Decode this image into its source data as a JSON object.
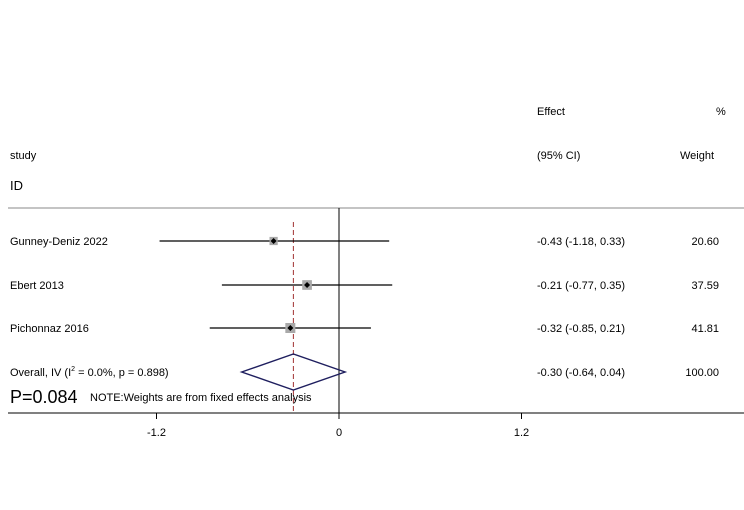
{
  "chart_data": {
    "type": "forest",
    "headers": {
      "study": "study",
      "id": "ID",
      "effect_line1": "Effect",
      "effect_line2": "(95% CI)",
      "weight_line1": "%",
      "weight_line2": "Weight"
    },
    "studies": [
      {
        "label": "Gunney-Deniz 2022",
        "effect": -0.43,
        "lower": -1.18,
        "upper": 0.33,
        "ci_text": "-0.43 (-1.18, 0.33)",
        "weight": 20.6,
        "weight_text": "20.60"
      },
      {
        "label": "Ebert 2013",
        "effect": -0.21,
        "lower": -0.77,
        "upper": 0.35,
        "ci_text": "-0.21 (-0.77, 0.35)",
        "weight": 37.59,
        "weight_text": "37.59"
      },
      {
        "label": "Pichonnaz 2016",
        "effect": -0.32,
        "lower": -0.85,
        "upper": 0.21,
        "ci_text": "-0.32 (-0.85, 0.21)",
        "weight": 41.81,
        "weight_text": "41.81"
      }
    ],
    "overall": {
      "label_prefix": "Overall, IV (I",
      "label_sup": "2",
      "label_suffix": " = 0.0%, p = 0.898)",
      "effect": -0.3,
      "lower": -0.64,
      "upper": 0.04,
      "ci_text": "-0.30 (-0.64, 0.04)",
      "weight_text": "100.00"
    },
    "p_value_text": "P=0.084",
    "note": "NOTE:Weights are from fixed effects analysis",
    "xticks": [
      -1.2,
      0,
      1.2
    ],
    "xtick_labels": [
      "-1.2",
      "0",
      "1.2"
    ],
    "xlim": [
      -1.2,
      1.2
    ],
    "colors": {
      "ci_line": "#000000",
      "weight_box": "#a9a9a9",
      "diamond": "#1f1f5f",
      "overall_line": "#a03030",
      "axis": "#000000",
      "divider": "#888888"
    }
  }
}
